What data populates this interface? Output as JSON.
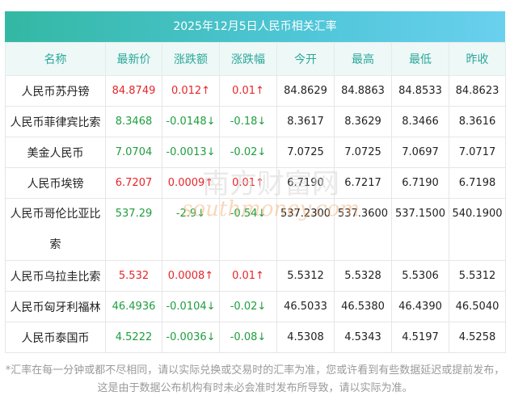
{
  "title": "2025年12月5日人民币相关汇率",
  "headers": [
    "名称",
    "最新价",
    "涨跌额",
    "涨跌幅",
    "今开",
    "最高",
    "最低",
    "昨收"
  ],
  "rows": [
    {
      "name": "人民币苏丹镑",
      "latest": "84.8749",
      "change": "0.012↑",
      "pct": "0.01↑",
      "open": "84.8629",
      "high": "84.8863",
      "low": "84.8533",
      "prev": "84.8623",
      "dir": "up"
    },
    {
      "name": "人民币菲律宾比索",
      "latest": "8.3468",
      "change": "-0.0148↓",
      "pct": "-0.18↓",
      "open": "8.3617",
      "high": "8.3629",
      "low": "8.3466",
      "prev": "8.3616",
      "dir": "down"
    },
    {
      "name": "美金人民币",
      "latest": "7.0704",
      "change": "-0.0013↓",
      "pct": "-0.02↓",
      "open": "7.0725",
      "high": "7.0725",
      "low": "7.0697",
      "prev": "7.0717",
      "dir": "down"
    },
    {
      "name": "人民币埃镑",
      "latest": "6.7207",
      "change": "0.0009↑",
      "pct": "0.01↑",
      "open": "6.7190",
      "high": "6.7217",
      "low": "6.7190",
      "prev": "6.7198",
      "dir": "up"
    },
    {
      "name": "人民币哥伦比亚比索",
      "latest": "537.29",
      "change": "-2.9↓",
      "pct": "-0.54↓",
      "open": "537.2300",
      "high": "537.3600",
      "low": "537.1500",
      "prev": "540.1900",
      "dir": "down"
    },
    {
      "name": "人民币乌拉圭比索",
      "latest": "5.532",
      "change": "0.0008↑",
      "pct": "0.01↑",
      "open": "5.5312",
      "high": "5.5328",
      "low": "5.5306",
      "prev": "5.5312",
      "dir": "up"
    },
    {
      "name": "人民币匈牙利福林",
      "latest": "46.4936",
      "change": "-0.0104↓",
      "pct": "-0.02↓",
      "open": "46.5033",
      "high": "46.5380",
      "low": "46.4390",
      "prev": "46.5040",
      "dir": "down"
    },
    {
      "name": "人民币泰国币",
      "latest": "4.5222",
      "change": "-0.0036↓",
      "pct": "-0.08↓",
      "open": "4.5308",
      "high": "4.5343",
      "low": "4.5197",
      "prev": "4.5258",
      "dir": "down"
    }
  ],
  "footnote": "*汇率在每一分钟或都不尽相同，请以实际兑换或交易时的汇率为准，您或许看到有些数据延迟或提前发布，这是由于数据公布机构有时未必会准时发布所导致，请以实际为准。",
  "watermark": {
    "cn": "南方财富网",
    "en": "southmoney.com"
  },
  "colors": {
    "up": "#e5262a",
    "down": "#1e9e3e",
    "header_text": "#2aa89a",
    "title_start": "#33b8a3",
    "title_end": "#6ad0ee"
  }
}
